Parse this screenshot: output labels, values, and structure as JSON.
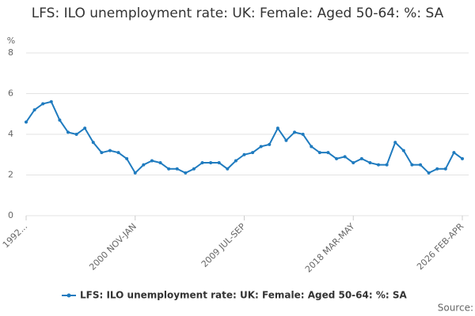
{
  "chart_data": {
    "type": "line",
    "title": "LFS: ILO unemployment rate: UK: Female: Aged 50-64: %: SA",
    "y_label": "%",
    "source": "Source:",
    "categories": [
      "1992...",
      null,
      null,
      null,
      null,
      null,
      null,
      null,
      null,
      null,
      null,
      null,
      null,
      "2000 NOV-JAN",
      null,
      null,
      null,
      null,
      null,
      null,
      null,
      null,
      null,
      null,
      null,
      null,
      "2009 JUL-SEP",
      null,
      null,
      null,
      null,
      null,
      null,
      null,
      null,
      null,
      null,
      null,
      null,
      "2018 MAR-MAY",
      null,
      null,
      null,
      null,
      null,
      null,
      null,
      null,
      null,
      null,
      null,
      null,
      "2026 FEB-APR"
    ],
    "series": [
      {
        "name": "LFS: ILO unemployment rate: UK: Female: Aged 50-64: %: SA",
        "color": "#1f7bbf",
        "values": [
          4.6,
          5.2,
          5.5,
          5.6,
          4.7,
          4.1,
          4.0,
          4.3,
          3.6,
          3.1,
          3.2,
          3.1,
          2.8,
          2.1,
          2.5,
          2.7,
          2.6,
          2.3,
          2.3,
          2.1,
          2.3,
          2.6,
          2.6,
          2.6,
          2.3,
          2.7,
          3.0,
          3.1,
          3.4,
          3.5,
          4.3,
          3.7,
          4.1,
          4.0,
          3.4,
          3.1,
          3.1,
          2.8,
          2.9,
          2.6,
          2.8,
          2.6,
          2.5,
          2.5,
          3.6,
          3.2,
          2.5,
          2.5,
          2.1,
          2.3,
          2.3,
          3.1,
          2.8
        ]
      }
    ],
    "ylim": [
      0,
      8
    ],
    "yticks": [
      0,
      2,
      4,
      6,
      8
    ],
    "grid": true
  }
}
